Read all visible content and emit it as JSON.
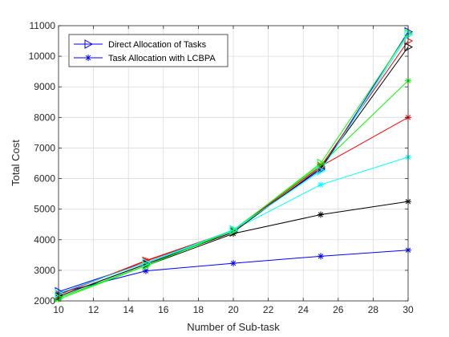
{
  "chart_data": {
    "type": "line",
    "title": "",
    "xlabel": "Number of Sub-task",
    "ylabel": "Total Cost",
    "xlim": [
      10,
      30
    ],
    "ylim": [
      2000,
      11000
    ],
    "x_ticks": [
      10,
      12,
      14,
      16,
      18,
      20,
      22,
      24,
      26,
      28,
      30
    ],
    "y_ticks": [
      2000,
      3000,
      4000,
      5000,
      6000,
      7000,
      8000,
      9000,
      10000,
      11000
    ],
    "grid": true,
    "legend_position": "top-left",
    "x": [
      10,
      15,
      20,
      25,
      30
    ],
    "series": [
      {
        "name": "Direct Allocation of Tasks",
        "color": "#0000ff",
        "marker": "triangle-right",
        "values": [
          2300,
          3250,
          4320,
          6300,
          10800
        ]
      },
      {
        "name": "Task Allocation with LCBPA",
        "color": "#0000ff",
        "marker": "star",
        "values": [
          2250,
          2980,
          3230,
          3460,
          3660
        ]
      },
      {
        "name": "",
        "color": "#ff0000",
        "marker": "star",
        "values": [
          2200,
          3320,
          4300,
          6400,
          8000
        ]
      },
      {
        "name": "",
        "color": "#00ffff",
        "marker": "star",
        "values": [
          2150,
          3200,
          4320,
          5800,
          6700
        ]
      },
      {
        "name": "",
        "color": "#000000",
        "marker": "star",
        "values": [
          2100,
          3150,
          4200,
          4820,
          5250
        ]
      },
      {
        "name": "",
        "color": "#00ff00",
        "marker": "star",
        "values": [
          2050,
          3150,
          4320,
          6450,
          9200
        ]
      },
      {
        "name": "",
        "color": "#ff0000",
        "marker": "triangle-right",
        "values": [
          2200,
          3300,
          4300,
          6400,
          10500
        ]
      },
      {
        "name": "",
        "color": "#000000",
        "marker": "triangle-right",
        "values": [
          2150,
          3200,
          4250,
          6350,
          10300
        ]
      },
      {
        "name": "",
        "color": "#00ff00",
        "marker": "triangle-right",
        "values": [
          2100,
          3150,
          4300,
          6500,
          10750
        ]
      },
      {
        "name": "",
        "color": "#00ffff",
        "marker": "triangle-right",
        "values": [
          2250,
          3250,
          4320,
          6250,
          10700
        ]
      }
    ]
  }
}
